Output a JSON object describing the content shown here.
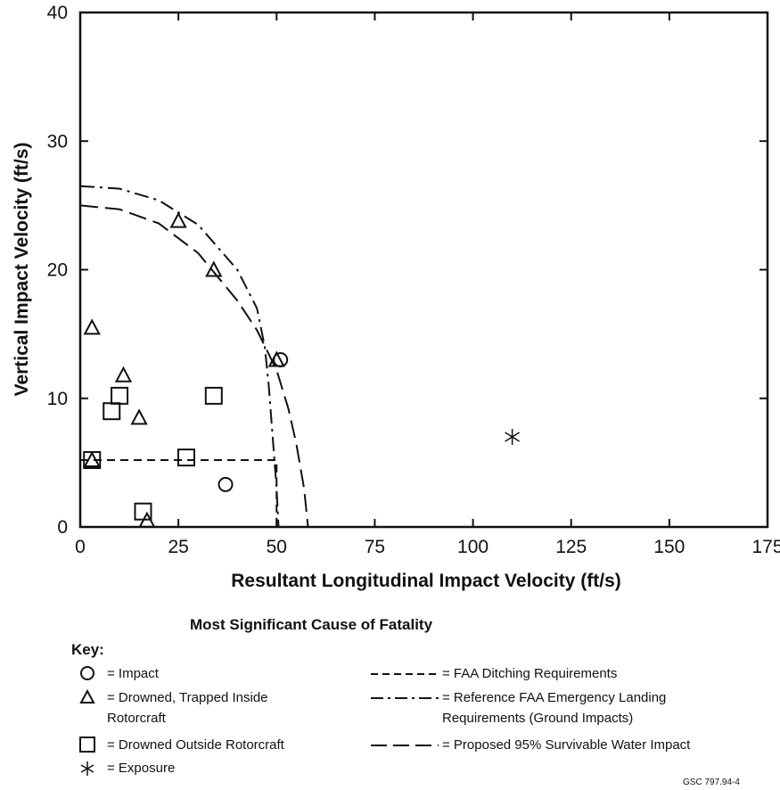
{
  "chart_data": {
    "type": "scatter",
    "xlabel": "Resultant Longitudinal Impact Velocity (ft/s)",
    "ylabel": "Vertical Impact Velocity (ft/s)",
    "xlim": [
      0,
      175
    ],
    "ylim": [
      0,
      40
    ],
    "xticks": [
      0,
      25,
      50,
      75,
      100,
      125,
      150,
      175
    ],
    "yticks": [
      0,
      10,
      20,
      30,
      40
    ],
    "xtick_labels": [
      "0",
      "25",
      "50",
      "75",
      "100",
      "125",
      "150",
      "175"
    ],
    "ytick_labels": [
      "0",
      "10",
      "20",
      "30",
      "40"
    ],
    "grid": false,
    "series": [
      {
        "name": "Impact",
        "marker": "circle",
        "x": [
          37,
          51
        ],
        "y": [
          3.3,
          13
        ]
      },
      {
        "name": "Drowned, Trapped Inside Rotorcraft",
        "marker": "triangle",
        "x": [
          3,
          3,
          11,
          15,
          17,
          25,
          34,
          50
        ],
        "y": [
          5.2,
          15.5,
          11.8,
          8.5,
          0.5,
          23.8,
          20,
          13
        ]
      },
      {
        "name": "Drowned Outside Rotorcraft",
        "marker": "square",
        "x": [
          3,
          8,
          10,
          16,
          27,
          34
        ],
        "y": [
          5.2,
          9,
          10.2,
          1.2,
          5.4,
          10.2
        ]
      },
      {
        "name": "Exposure",
        "marker": "asterisk",
        "x": [
          110
        ],
        "y": [
          7
        ]
      }
    ],
    "curves": [
      {
        "name": "FAA Ditching Requirements",
        "style": "dashed",
        "x": [
          0,
          50,
          50
        ],
        "y": [
          5.2,
          5.2,
          0
        ]
      },
      {
        "name": "Reference FAA Emergency Landing Requirements (Ground Impacts)",
        "style": "dash-dot",
        "x": [
          0,
          10,
          20,
          30,
          40,
          45,
          47,
          48,
          49,
          50,
          50.5
        ],
        "y": [
          26.5,
          26.3,
          25.4,
          23.5,
          20,
          17,
          14,
          11,
          7,
          3,
          0
        ]
      },
      {
        "name": "Proposed 95% Survivable Water Impact",
        "style": "long-dash",
        "x": [
          0,
          10,
          20,
          30,
          40,
          45,
          50,
          53,
          55,
          57,
          58
        ],
        "y": [
          25,
          24.7,
          23.6,
          21.3,
          17.6,
          15.3,
          12.2,
          9.2,
          6.5,
          3,
          0
        ]
      }
    ]
  },
  "key": {
    "title": "Most Significant Cause of Fatality",
    "heading": "Key:",
    "items": [
      {
        "label": "= Impact"
      },
      {
        "label": "= Drowned, Trapped Inside\nRotorcraft"
      },
      {
        "label": "= Drowned Outside Rotorcraft"
      },
      {
        "label": "= Exposure"
      }
    ],
    "lines": [
      {
        "label": "= FAA Ditching Requirements"
      },
      {
        "label": "= Reference FAA Emergency Landing\nRequirements (Ground Impacts)"
      },
      {
        "label": "= Proposed 95% Survivable Water Impact"
      }
    ]
  },
  "footnote": "GSC 797.94-4"
}
